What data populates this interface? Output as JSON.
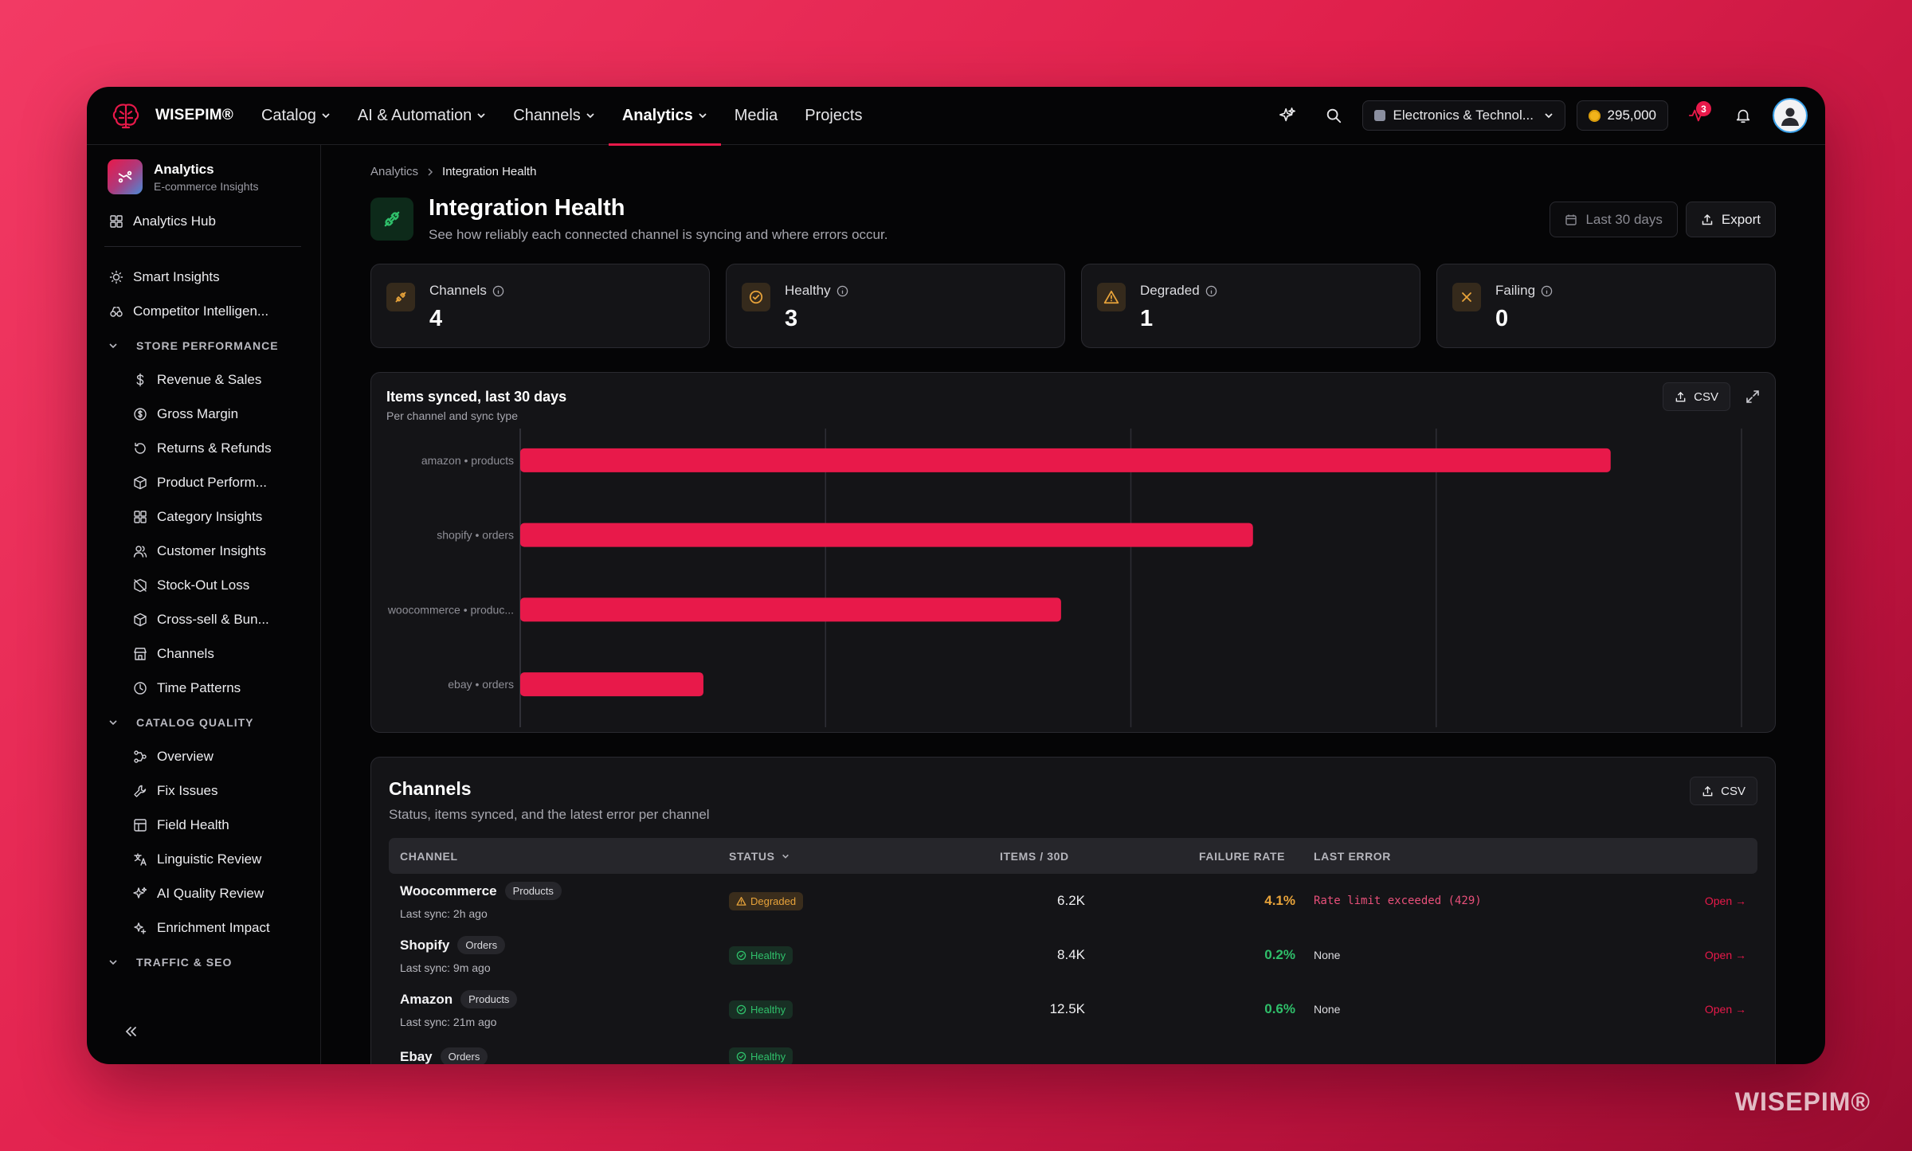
{
  "brand": {
    "name": "WISEPIM®"
  },
  "nav": {
    "items": [
      {
        "label": "Catalog",
        "dropdown": true
      },
      {
        "label": "AI & Automation",
        "dropdown": true
      },
      {
        "label": "Channels",
        "dropdown": true
      },
      {
        "label": "Analytics",
        "dropdown": true,
        "active": true
      },
      {
        "label": "Media",
        "dropdown": false
      },
      {
        "label": "Projects",
        "dropdown": false
      }
    ],
    "store": "Electronics & Technol...",
    "credits": "295,000",
    "activity_badge": "3"
  },
  "sidebar": {
    "title": "Analytics",
    "subtitle": "E-commerce Insights",
    "hub": "Analytics Hub",
    "top_items": [
      "Smart Insights",
      "Competitor Intelligen..."
    ],
    "sections": [
      {
        "label": "STORE PERFORMANCE",
        "items": [
          "Revenue & Sales",
          "Gross Margin",
          "Returns & Refunds",
          "Product Perform...",
          "Category Insights",
          "Customer Insights",
          "Stock-Out Loss",
          "Cross-sell & Bun...",
          "Channels",
          "Time Patterns"
        ]
      },
      {
        "label": "CATALOG QUALITY",
        "items": [
          "Overview",
          "Fix Issues",
          "Field Health",
          "Linguistic Review",
          "AI Quality Review",
          "Enrichment Impact"
        ]
      },
      {
        "label": "TRAFFIC & SEO",
        "items": []
      }
    ]
  },
  "page": {
    "breadcrumb": [
      "Analytics",
      "Integration Health"
    ],
    "title": "Integration Health",
    "subtitle": "See how reliably each connected channel is syncing and where errors occur.",
    "date_range": "Last 30 days",
    "export_label": "Export"
  },
  "stats": [
    {
      "label": "Channels",
      "value": "4",
      "color": "#e8a33a"
    },
    {
      "label": "Healthy",
      "value": "3",
      "color": "#e8a33a"
    },
    {
      "label": "Degraded",
      "value": "1",
      "color": "#e8a33a"
    },
    {
      "label": "Failing",
      "value": "0",
      "color": "#e8a33a"
    }
  ],
  "chart_card": {
    "title": "Items synced, last 30 days",
    "subtitle": "Per channel and sync type",
    "csv_label": "CSV"
  },
  "chart_data": {
    "type": "bar",
    "orientation": "horizontal",
    "categories": [
      "amazon • products",
      "shopify • orders",
      "woocommerce • produc...",
      "ebay • orders"
    ],
    "values": [
      12500,
      8400,
      6200,
      2100
    ],
    "xlim": [
      0,
      14000
    ],
    "grid": true,
    "color": "#e8194a"
  },
  "table": {
    "title": "Channels",
    "subtitle": "Status, items synced, and the latest error per channel",
    "csv_label": "CSV",
    "columns": [
      "CHANNEL",
      "STATUS",
      "ITEMS / 30D",
      "FAILURE RATE",
      "LAST ERROR"
    ],
    "rows": [
      {
        "name": "Woocommerce",
        "type": "Products",
        "sync": "Last sync: 2h ago",
        "status": "Degraded",
        "items": "6.2K",
        "rate": "4.1%",
        "error": "Rate limit exceeded (429)",
        "action": "Open →"
      },
      {
        "name": "Shopify",
        "type": "Orders",
        "sync": "Last sync: 9m ago",
        "status": "Healthy",
        "items": "8.4K",
        "rate": "0.2%",
        "error": "None",
        "action": "Open →"
      },
      {
        "name": "Amazon",
        "type": "Products",
        "sync": "Last sync: 21m ago",
        "status": "Healthy",
        "items": "12.5K",
        "rate": "0.6%",
        "error": "None",
        "action": "Open →"
      },
      {
        "name": "Ebay",
        "type": "Orders",
        "sync": "",
        "status": "Healthy",
        "items": "",
        "rate": "",
        "error": "",
        "action": ""
      }
    ]
  },
  "colors": {
    "accent": "#e8194a",
    "healthy": "#2fbf6a",
    "degraded": "#e8a33a",
    "error": "#e8507a"
  },
  "watermark": "WISEPIM®"
}
